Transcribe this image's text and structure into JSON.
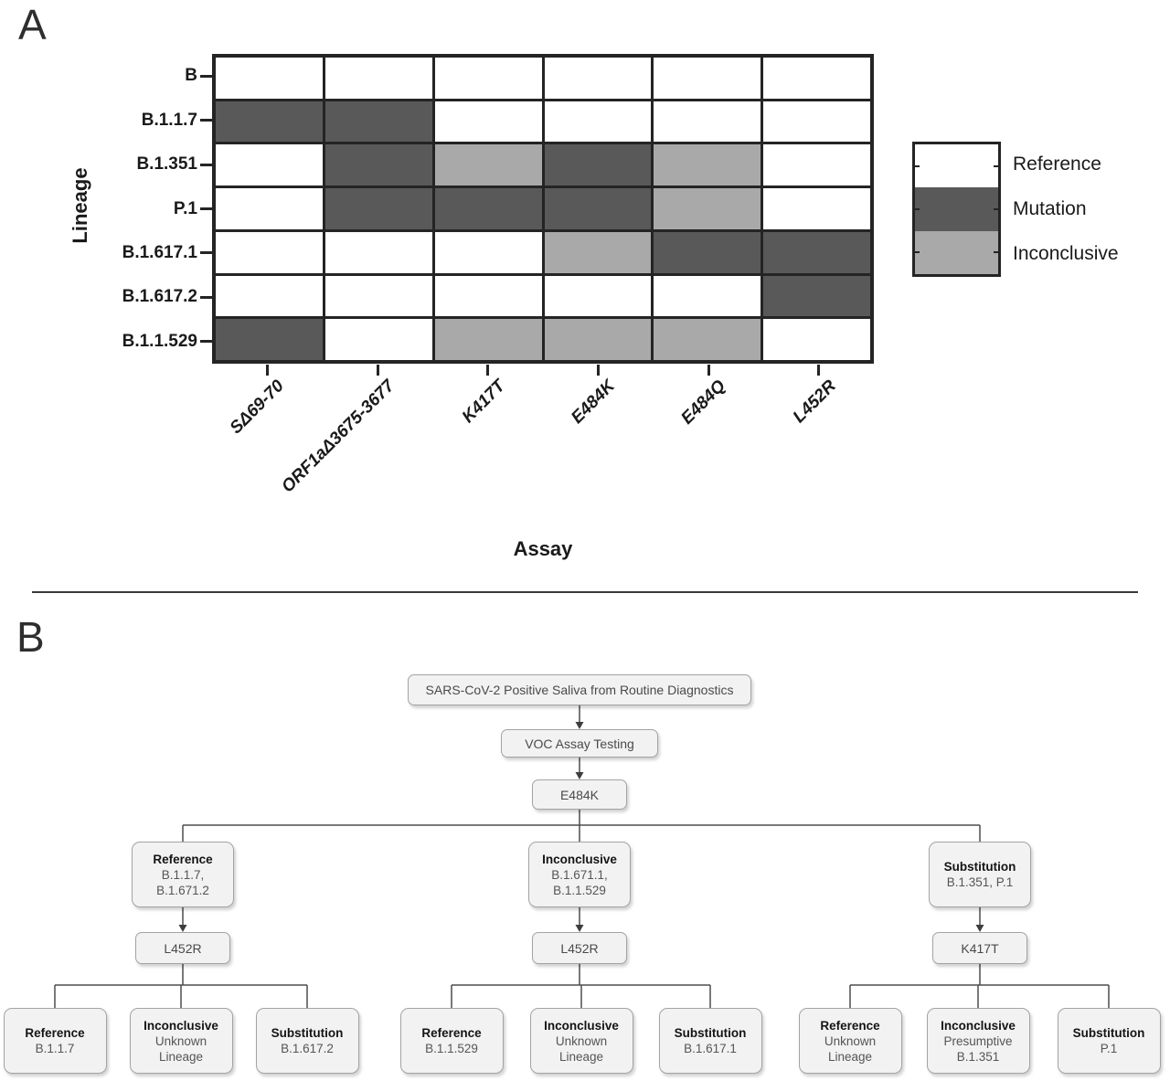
{
  "panelA": {
    "label": "A",
    "ylabel": "Lineage",
    "xlabel": "Assay",
    "status_colors": {
      "reference": "#ffffff",
      "mutation": "#595959",
      "inconclusive": "#a9a9a9"
    },
    "legend": [
      {
        "label": "Reference",
        "status": "reference"
      },
      {
        "label": "Mutation",
        "status": "mutation"
      },
      {
        "label": "Inconclusive",
        "status": "inconclusive"
      }
    ],
    "chart_data": {
      "type": "heatmap",
      "rows": [
        "B",
        "B.1.1.7",
        "B.1.351",
        "P.1",
        "B.1.617.1",
        "B.1.617.2",
        "B.1.1.529"
      ],
      "columns": [
        "SΔ69-70",
        "ORF1aΔ3675-3677",
        "K417T",
        "E484K",
        "E484Q",
        "L452R"
      ],
      "values": [
        [
          "reference",
          "reference",
          "reference",
          "reference",
          "reference",
          "reference"
        ],
        [
          "mutation",
          "mutation",
          "reference",
          "reference",
          "reference",
          "reference"
        ],
        [
          "reference",
          "mutation",
          "inconclusive",
          "mutation",
          "inconclusive",
          "reference"
        ],
        [
          "reference",
          "mutation",
          "mutation",
          "mutation",
          "inconclusive",
          "reference"
        ],
        [
          "reference",
          "reference",
          "reference",
          "inconclusive",
          "mutation",
          "mutation"
        ],
        [
          "reference",
          "reference",
          "reference",
          "reference",
          "reference",
          "mutation"
        ],
        [
          "mutation",
          "reference",
          "inconclusive",
          "inconclusive",
          "inconclusive",
          "reference"
        ]
      ],
      "xlabel": "Assay",
      "ylabel": "Lineage",
      "legend_position": "right",
      "grid": true
    }
  },
  "panelB": {
    "label": "B",
    "flowchart": {
      "root": "SARS-CoV-2 Positive Saliva from Routine Diagnostics",
      "step2": "VOC Assay Testing",
      "step3": "E484K",
      "branches": [
        {
          "title": "Reference",
          "lines": [
            "B.1.1.7,",
            "B.1.671.2"
          ],
          "assay": "L452R",
          "leaves": [
            {
              "title": "Reference",
              "lines": [
                "B.1.1.7"
              ]
            },
            {
              "title": "Inconclusive",
              "lines": [
                "Unknown",
                "Lineage"
              ]
            },
            {
              "title": "Substitution",
              "lines": [
                "B.1.617.2"
              ]
            }
          ]
        },
        {
          "title": "Inconclusive",
          "lines": [
            "B.1.671.1,",
            "B.1.1.529"
          ],
          "assay": "L452R",
          "leaves": [
            {
              "title": "Reference",
              "lines": [
                "B.1.1.529"
              ]
            },
            {
              "title": "Inconclusive",
              "lines": [
                "Unknown",
                "Lineage"
              ]
            },
            {
              "title": "Substitution",
              "lines": [
                "B.1.617.1"
              ]
            }
          ]
        },
        {
          "title": "Substitution",
          "lines": [
            "B.1.351, P.1"
          ],
          "assay": "K417T",
          "leaves": [
            {
              "title": "Reference",
              "lines": [
                "Unknown",
                "Lineage"
              ]
            },
            {
              "title": "Inconclusive",
              "lines": [
                "Presumptive",
                "B.1.351"
              ]
            },
            {
              "title": "Substitution",
              "lines": [
                "P.1"
              ]
            }
          ]
        }
      ]
    }
  }
}
